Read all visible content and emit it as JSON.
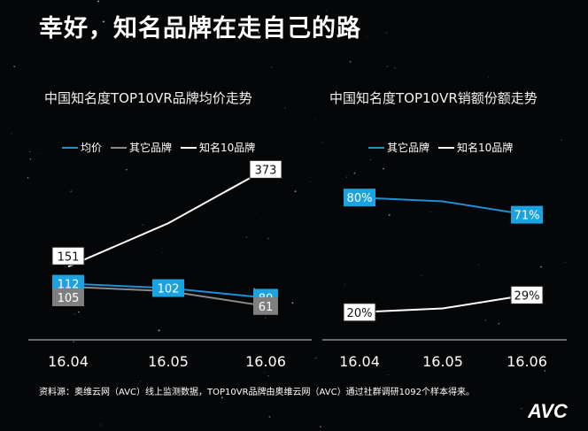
{
  "page_title": "幸好，知名品牌在走自己的路",
  "source": "资料源：奥维云网（AVC）线上监测数据，TOP10VR品牌由奥维云网（AVC）通过社群调研1092个样本得来。",
  "logo_text": "AVC",
  "chart_data": [
    {
      "type": "line",
      "title": "中国知名度TOP10VR品牌均价走势",
      "categories": [
        "16.04",
        "16.05",
        "16.06"
      ],
      "series": [
        {
          "name": "均价",
          "color": "#1f8fd6",
          "label_bg": "#1aa3e0",
          "values": [
            112,
            102,
            80
          ],
          "labeled": [
            true,
            true,
            true
          ]
        },
        {
          "name": "其它品牌",
          "color": "#8a8a8a",
          "label_bg": "#7f7f7f",
          "values": [
            105,
            95,
            61
          ],
          "labeled": [
            true,
            false,
            true
          ]
        },
        {
          "name": "知名10品牌",
          "color": "#ffffff",
          "label_bg": "#ffffff",
          "values": [
            151,
            250,
            373
          ],
          "labeled": [
            true,
            false,
            true
          ]
        }
      ],
      "labels": {
        "均价": [
          "112",
          "102",
          "80"
        ],
        "其它品牌": [
          "105",
          "",
          "61"
        ],
        "知名10品牌": [
          "151",
          "",
          "373"
        ]
      }
    },
    {
      "type": "line",
      "title": "中国知名度TOP10VR销额份额走势",
      "categories": [
        "16.04",
        "16.05",
        "16.06"
      ],
      "series": [
        {
          "name": "其它品牌",
          "color": "#1f8fd6",
          "label_bg": "#1aa3e0",
          "values": [
            80,
            78,
            71
          ],
          "labeled": [
            true,
            false,
            true
          ]
        },
        {
          "name": "知名10品牌",
          "color": "#ffffff",
          "label_bg": "#ffffff",
          "values": [
            20,
            22,
            29
          ],
          "labeled": [
            true,
            false,
            true
          ]
        }
      ],
      "labels": {
        "其它品牌": [
          "80%",
          "",
          "71%"
        ],
        "知名10品牌": [
          "20%",
          "",
          "29%"
        ]
      }
    }
  ]
}
